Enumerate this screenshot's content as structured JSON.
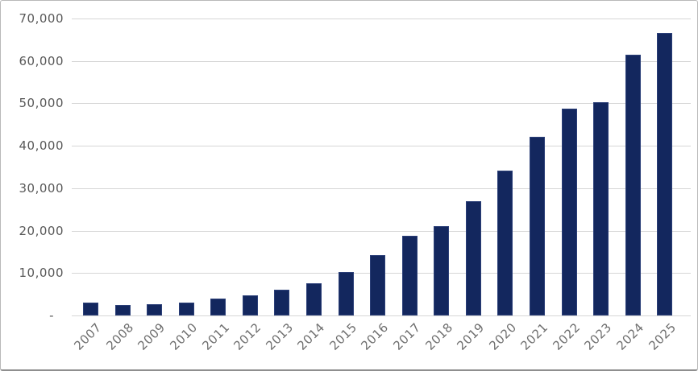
{
  "chart_data": {
    "type": "bar",
    "title": "",
    "xlabel": "",
    "ylabel": "",
    "categories": [
      "2007",
      "2008",
      "2009",
      "2010",
      "2011",
      "2012",
      "2013",
      "2014",
      "2015",
      "2016",
      "2017",
      "2018",
      "2019",
      "2020",
      "2021",
      "2022",
      "2023",
      "2024",
      "2025"
    ],
    "values": [
      3000,
      2400,
      2600,
      3100,
      4000,
      4700,
      6100,
      7500,
      10300,
      14200,
      18700,
      21000,
      27000,
      34200,
      42000,
      48700,
      50200,
      61500,
      66600
    ],
    "ylim": [
      0,
      70000
    ],
    "ytick_interval": 10000,
    "ytick_labels": [
      "-",
      "10,000",
      "20,000",
      "30,000",
      "40,000",
      "50,000",
      "60,000",
      "70,000"
    ],
    "grid": "horizontal",
    "legend": null,
    "colors": {
      "bar": "#13275e",
      "gridline": "#d6d6d6",
      "y_tick_text": "#595959",
      "x_tick_text": "#6e6e6e",
      "background": "#ffffff"
    }
  }
}
